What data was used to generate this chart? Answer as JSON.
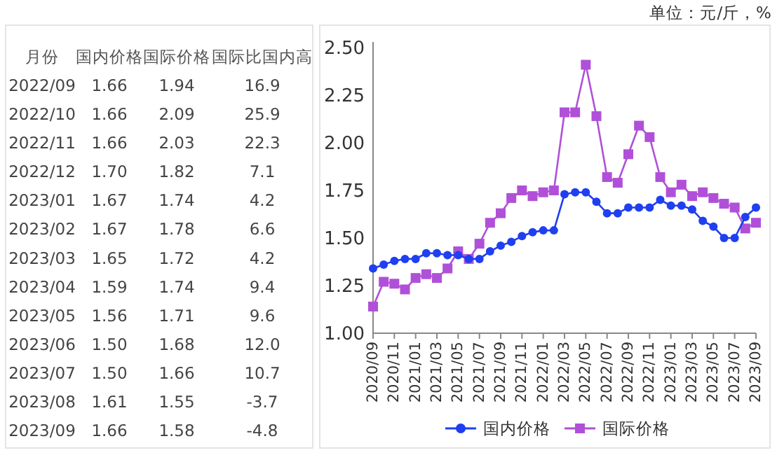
{
  "chart_data": [
    {
      "type": "other",
      "xlabel": "月份",
      "categories": [
        "2022/09",
        "2022/10",
        "2022/11",
        "2022/12",
        "2023/01",
        "2023/02",
        "2023/03",
        "2023/04",
        "2023/05",
        "2023/06",
        "2023/07",
        "2023/08",
        "2023/09"
      ],
      "series": [
        {
          "name": "国内价格",
          "values": [
            1.66,
            1.66,
            1.66,
            1.7,
            1.67,
            1.67,
            1.65,
            1.59,
            1.56,
            1.5,
            1.5,
            1.61,
            1.66
          ],
          "value_labels": [
            "1.66",
            "1.66",
            "1.66",
            "1.70",
            "1.67",
            "1.67",
            "1.65",
            "1.59",
            "1.56",
            "1.50",
            "1.50",
            "1.61",
            "1.66"
          ]
        },
        {
          "name": "国际价格",
          "values": [
            1.94,
            2.09,
            2.03,
            1.82,
            1.74,
            1.78,
            1.72,
            1.74,
            1.71,
            1.68,
            1.66,
            1.55,
            1.58
          ],
          "value_labels": [
            "1.94",
            "2.09",
            "2.03",
            "1.82",
            "1.74",
            "1.78",
            "1.72",
            "1.74",
            "1.71",
            "1.68",
            "1.66",
            "1.55",
            "1.58"
          ]
        },
        {
          "name": "国际比国内高",
          "values": [
            16.9,
            25.9,
            22.3,
            7.1,
            4.2,
            6.6,
            4.2,
            9.4,
            9.6,
            12.0,
            10.7,
            -3.7,
            -4.8
          ],
          "value_labels": [
            "16.9",
            "25.9",
            "22.3",
            "7.1",
            "4.2",
            "6.6",
            "4.2",
            "9.4",
            "9.6",
            "12.0",
            "10.7",
            "-3.7",
            "-4.8"
          ]
        }
      ],
      "data_labels": true
    },
    {
      "type": "line",
      "annotations": [
        "单位：元/斤，%"
      ],
      "x": [
        "2020-09",
        "2020-10",
        "2020-11",
        "2020-12",
        "2021-01",
        "2021-02",
        "2021-03",
        "2021-04",
        "2021-05",
        "2021-06",
        "2021-07",
        "2021-08",
        "2021-09",
        "2021-10",
        "2021-11",
        "2021-12",
        "2022-01",
        "2022-02",
        "2022-03",
        "2022-04",
        "2022-05",
        "2022-06",
        "2022-07",
        "2022-08",
        "2022-09",
        "2022-10",
        "2022-11",
        "2022-12",
        "2023-01",
        "2023-02",
        "2023-03",
        "2023-04",
        "2023-05",
        "2023-06",
        "2023-07",
        "2023-08",
        "2023-09"
      ],
      "series": [
        {
          "name": "国内价格",
          "color": "#1f3ff0",
          "marker": "circle",
          "values": [
            1.34,
            1.36,
            1.38,
            1.39,
            1.39,
            1.42,
            1.42,
            1.41,
            1.41,
            1.39,
            1.39,
            1.43,
            1.46,
            1.48,
            1.51,
            1.53,
            1.54,
            1.54,
            1.73,
            1.74,
            1.74,
            1.69,
            1.63,
            1.63,
            1.66,
            1.66,
            1.66,
            1.7,
            1.67,
            1.67,
            1.65,
            1.59,
            1.56,
            1.5,
            1.5,
            1.61,
            1.66
          ]
        },
        {
          "name": "国际价格",
          "color": "#b050d8",
          "marker": "square",
          "values": [
            1.14,
            1.27,
            1.26,
            1.23,
            1.29,
            1.31,
            1.29,
            1.34,
            1.43,
            1.39,
            1.47,
            1.58,
            1.63,
            1.71,
            1.75,
            1.72,
            1.74,
            1.75,
            2.16,
            2.16,
            2.41,
            2.14,
            1.82,
            1.79,
            1.94,
            2.09,
            2.03,
            1.82,
            1.74,
            1.78,
            1.72,
            1.74,
            1.71,
            1.68,
            1.66,
            1.55,
            1.58
          ]
        }
      ],
      "xlim": [
        "2020-09",
        "2023-09"
      ],
      "xticks": [
        {
          "value": "2020-09",
          "label": "2020/09"
        },
        {
          "value": "2020-11",
          "label": "2020/11"
        },
        {
          "value": "2021-01",
          "label": "2021/01"
        },
        {
          "value": "2021-03",
          "label": "2021/03"
        },
        {
          "value": "2021-05",
          "label": "2021/05"
        },
        {
          "value": "2021-07",
          "label": "2021/07"
        },
        {
          "value": "2021-09",
          "label": "2021/09"
        },
        {
          "value": "2021-11",
          "label": "2021/11"
        },
        {
          "value": "2022-01",
          "label": "2022/01"
        },
        {
          "value": "2022-03",
          "label": "2022/03"
        },
        {
          "value": "2022-05",
          "label": "2022/05"
        },
        {
          "value": "2022-07",
          "label": "2022/07"
        },
        {
          "value": "2022-09",
          "label": "2022/09"
        },
        {
          "value": "2022-11",
          "label": "2022/11"
        },
        {
          "value": "2023-01",
          "label": "2023/01"
        },
        {
          "value": "2023-03",
          "label": "2023/03"
        },
        {
          "value": "2023-05",
          "label": "2023/05"
        },
        {
          "value": "2023-07",
          "label": "2023/07"
        },
        {
          "value": "2023-09",
          "label": "2023/09"
        }
      ],
      "ylim": [
        1.0,
        2.5
      ],
      "yticks": [
        {
          "value": 1.0,
          "label": "1.00"
        },
        {
          "value": 1.25,
          "label": "1.25"
        },
        {
          "value": 1.5,
          "label": "1.50"
        },
        {
          "value": 1.75,
          "label": "1.75"
        },
        {
          "value": 2.0,
          "label": "2.00"
        },
        {
          "value": 2.25,
          "label": "2.25"
        },
        {
          "value": 2.5,
          "label": "2.50"
        }
      ],
      "legend": "bottom"
    }
  ]
}
